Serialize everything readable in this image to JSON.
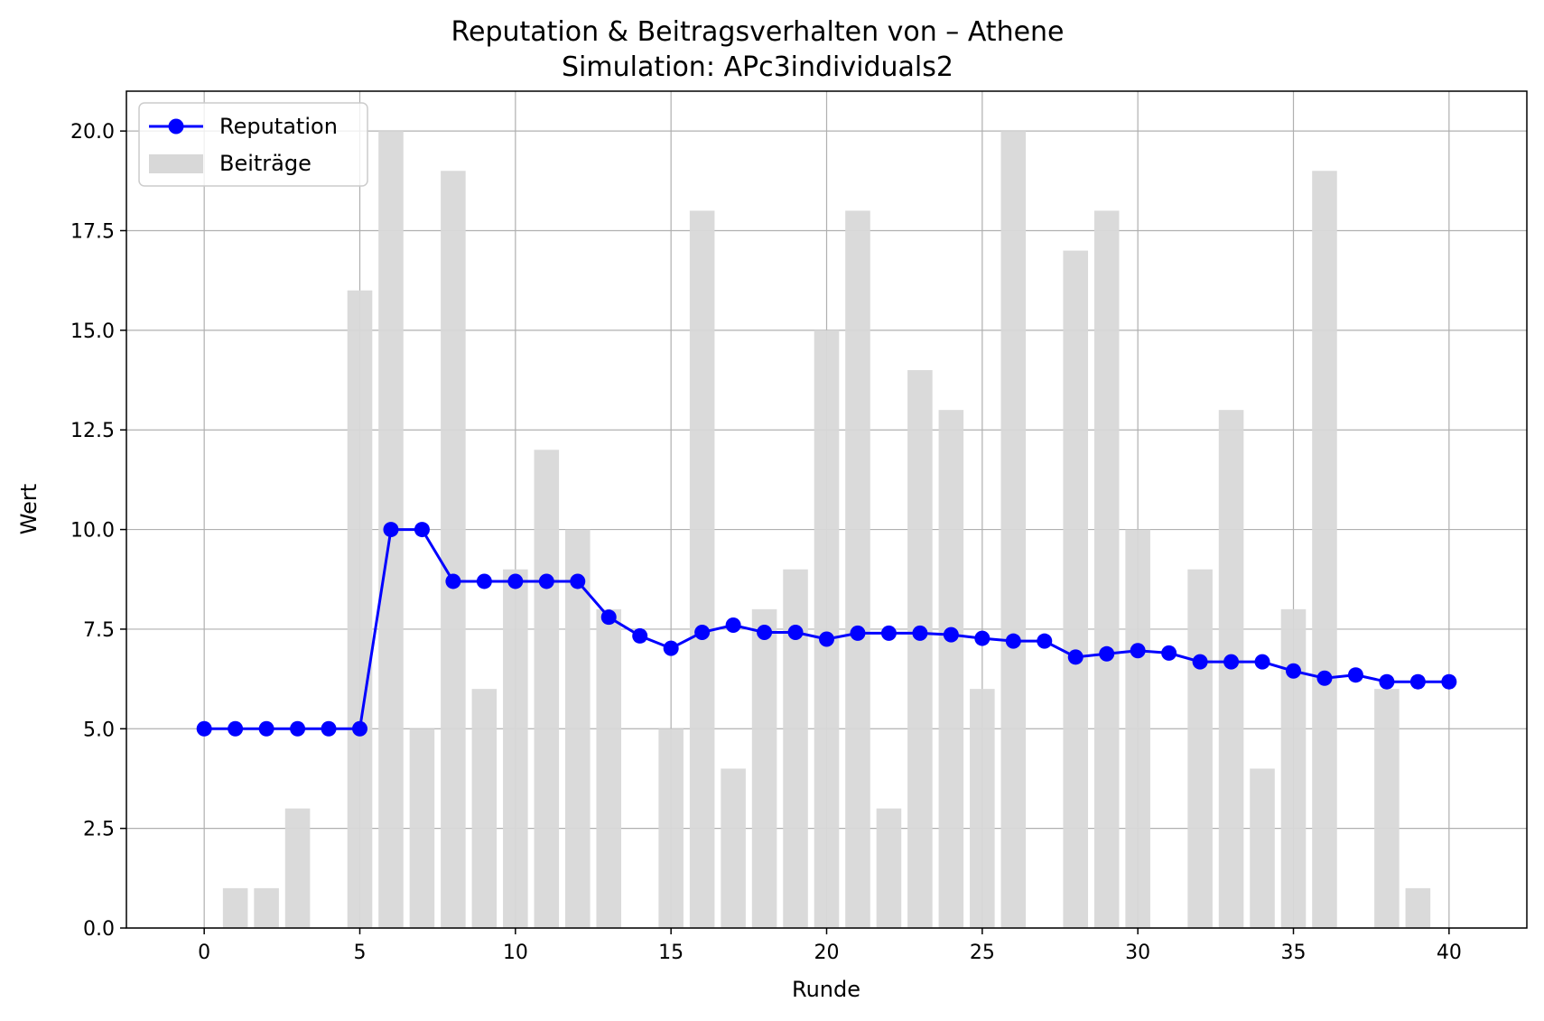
{
  "chart_data": {
    "type": "bar",
    "title": "Reputation & Beitragsverhalten von – Athene",
    "subtitle": "Simulation: APc3individuals2",
    "xlabel": "Runde",
    "ylabel": "Wert",
    "xlim": [
      -2.5,
      42.5
    ],
    "ylim": [
      0,
      21
    ],
    "xticks": [
      0,
      5,
      10,
      15,
      20,
      25,
      30,
      35,
      40
    ],
    "yticks": [
      0.0,
      2.5,
      5.0,
      7.5,
      10.0,
      12.5,
      15.0,
      17.5,
      20.0
    ],
    "ytick_labels": [
      "0.0",
      "2.5",
      "5.0",
      "7.5",
      "10.0",
      "12.5",
      "15.0",
      "17.5",
      "20.0"
    ],
    "grid": true,
    "legend_position": "upper-left",
    "series": [
      {
        "name": "Reputation",
        "kind": "line",
        "color": "#0000ff",
        "x": [
          0,
          1,
          2,
          3,
          4,
          5,
          6,
          7,
          8,
          9,
          10,
          11,
          12,
          13,
          14,
          15,
          16,
          17,
          18,
          19,
          20,
          21,
          22,
          23,
          24,
          25,
          26,
          27,
          28,
          29,
          30,
          31,
          32,
          33,
          34,
          35,
          36,
          37,
          38,
          39,
          40
        ],
        "values": [
          5.0,
          5.0,
          5.0,
          5.0,
          5.0,
          5.0,
          10.0,
          10.0,
          8.7,
          8.7,
          8.7,
          8.7,
          8.7,
          7.8,
          7.33,
          7.02,
          7.42,
          7.6,
          7.42,
          7.42,
          7.25,
          7.4,
          7.4,
          7.4,
          7.36,
          7.27,
          7.2,
          7.2,
          6.8,
          6.88,
          6.96,
          6.9,
          6.68,
          6.68,
          6.68,
          6.45,
          6.27,
          6.35,
          6.18,
          6.18,
          6.18
        ]
      },
      {
        "name": "Beiträge",
        "kind": "bar",
        "color": "#d8d8d8",
        "x": [
          0,
          1,
          2,
          3,
          4,
          5,
          6,
          7,
          8,
          9,
          10,
          11,
          12,
          13,
          14,
          15,
          16,
          17,
          18,
          19,
          20,
          21,
          22,
          23,
          24,
          25,
          26,
          27,
          28,
          29,
          30,
          31,
          32,
          33,
          34,
          35,
          36,
          37,
          38,
          39,
          40
        ],
        "values": [
          0,
          1,
          1,
          3,
          0,
          16,
          20,
          5,
          19,
          6,
          9,
          12,
          10,
          8,
          0,
          5,
          18,
          4,
          8,
          9,
          15,
          18,
          3,
          14,
          13,
          6,
          20,
          0,
          17,
          18,
          10,
          0,
          9,
          13,
          4,
          8,
          19,
          0,
          6,
          1,
          0
        ]
      }
    ]
  }
}
